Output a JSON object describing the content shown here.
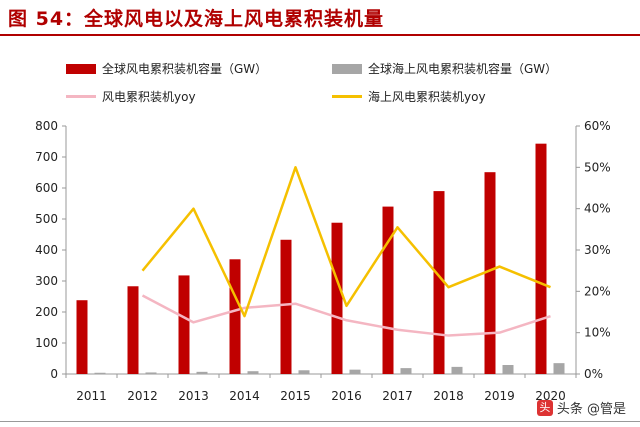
{
  "figure_title": "图 54：全球风电以及海上风电累积装机量",
  "colors": {
    "title": "#b00000",
    "bar_total": "#c00000",
    "bar_offshore": "#a6a6a6",
    "line_total_yoy": "#f4b6c2",
    "line_offshore_yoy": "#f5c000"
  },
  "watermark": {
    "text": "头条 @管是",
    "badge": "头"
  },
  "chart_data": {
    "type": "bar",
    "categories": [
      "2011",
      "2012",
      "2013",
      "2014",
      "2015",
      "2016",
      "2017",
      "2018",
      "2019",
      "2020"
    ],
    "series": [
      {
        "name": "全球风电累积装机容量（GW）",
        "kind": "bar",
        "axis": "left",
        "values": [
          238,
          283,
          318,
          370,
          433,
          488,
          540,
          590,
          651,
          743
        ]
      },
      {
        "name": "全球海上风电累积装机容量（GW）",
        "kind": "bar",
        "axis": "left",
        "values": [
          4,
          5,
          7,
          9,
          12,
          14,
          19,
          23,
          29,
          35
        ]
      },
      {
        "name": "风电累积装机yoy",
        "kind": "line",
        "axis": "right",
        "values": [
          null,
          0.19,
          0.125,
          0.16,
          0.17,
          0.13,
          0.107,
          0.093,
          0.1,
          0.14
        ]
      },
      {
        "name": "海上风电累积装机yoy",
        "kind": "line",
        "axis": "right",
        "values": [
          null,
          0.25,
          0.4,
          0.14,
          0.5,
          0.165,
          0.355,
          0.21,
          0.26,
          0.21
        ]
      }
    ],
    "ylim_left": [
      0,
      800
    ],
    "yticks_left": [
      "0",
      "100",
      "200",
      "300",
      "400",
      "500",
      "600",
      "700",
      "800"
    ],
    "ylim_right": [
      0,
      0.6
    ],
    "yticks_right": [
      "0%",
      "10%",
      "20%",
      "30%",
      "40%",
      "50%",
      "60%"
    ],
    "grid": false,
    "legend_position": "top"
  }
}
